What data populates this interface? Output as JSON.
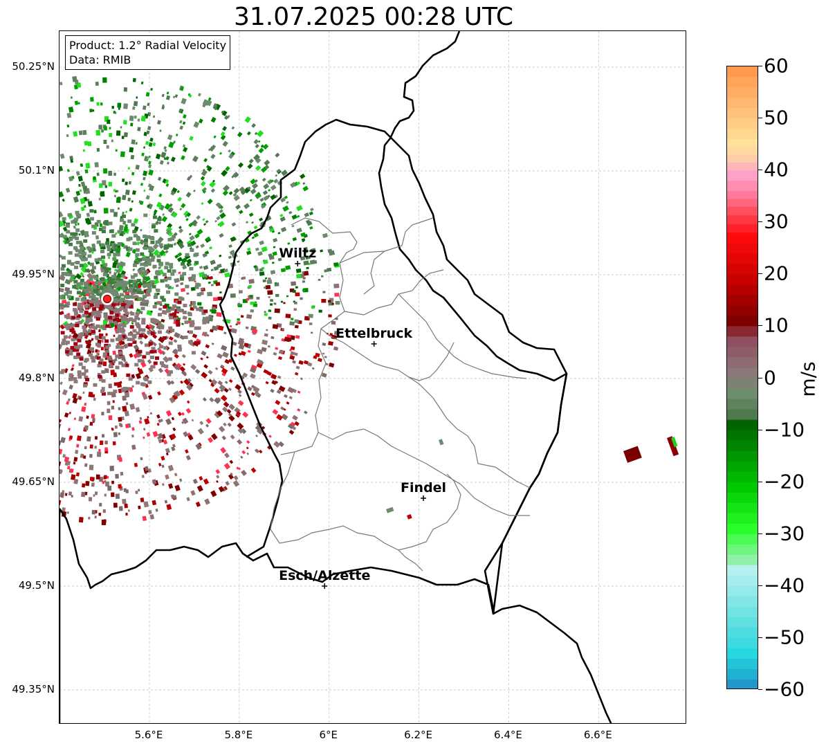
{
  "title": "31.07.2025 00:28 UTC",
  "info": {
    "product": "Product: 1.2° Radial Velocity",
    "data": "Data: RMIB"
  },
  "lat_ticks": [
    "50.25°N",
    "50.1°N",
    "49.95°N",
    "49.8°N",
    "49.65°N",
    "49.5°N",
    "49.35°N"
  ],
  "lon_ticks": [
    "5.6°E",
    "5.8°E",
    "6°E",
    "6.2°E",
    "6.4°E",
    "6.6°E"
  ],
  "cities": [
    {
      "name": "Wiltz",
      "lon": 5.93,
      "lat": 49.966
    },
    {
      "name": "Ettelbruck",
      "lon": 6.1,
      "lat": 49.85
    },
    {
      "name": "Findel",
      "lon": 6.21,
      "lat": 49.627
    },
    {
      "name": "Esch/Alzette",
      "lon": 5.99,
      "lat": 49.5
    }
  ],
  "colorbar": {
    "label": "m/s",
    "min": -60,
    "max": 60,
    "ticks": [
      "60",
      "50",
      "40",
      "30",
      "20",
      "10",
      "0",
      "−10",
      "−20",
      "−30",
      "−40",
      "−50",
      "−60"
    ],
    "stops": [
      {
        "v": 60,
        "c": "#ff9a4e"
      },
      {
        "v": 52,
        "c": "#ffc27a"
      },
      {
        "v": 46,
        "c": "#ffe39b"
      },
      {
        "v": 43,
        "c": "#ffcca8"
      },
      {
        "v": 40,
        "c": "#ffa0c8"
      },
      {
        "v": 36,
        "c": "#ff7a9a"
      },
      {
        "v": 33,
        "c": "#ff5060"
      },
      {
        "v": 28,
        "c": "#ff0a0a"
      },
      {
        "v": 20,
        "c": "#c80000"
      },
      {
        "v": 12,
        "c": "#800000"
      },
      {
        "v": 8,
        "c": "#905060"
      },
      {
        "v": 2,
        "c": "#8c7878"
      },
      {
        "v": -2,
        "c": "#6e8c6e"
      },
      {
        "v": -6,
        "c": "#4e7a4e"
      },
      {
        "v": -8,
        "c": "#006400"
      },
      {
        "v": -20,
        "c": "#00c800"
      },
      {
        "v": -28,
        "c": "#28ff28"
      },
      {
        "v": -34,
        "c": "#90f0a8"
      },
      {
        "v": -36,
        "c": "#b8f0f0"
      },
      {
        "v": -46,
        "c": "#60e0e0"
      },
      {
        "v": -52,
        "c": "#28d8e0"
      },
      {
        "v": -56,
        "c": "#20b0d0"
      },
      {
        "v": -60,
        "c": "#2080c8"
      }
    ]
  },
  "radar_site": {
    "lon": 5.51,
    "lat": 49.91
  }
}
